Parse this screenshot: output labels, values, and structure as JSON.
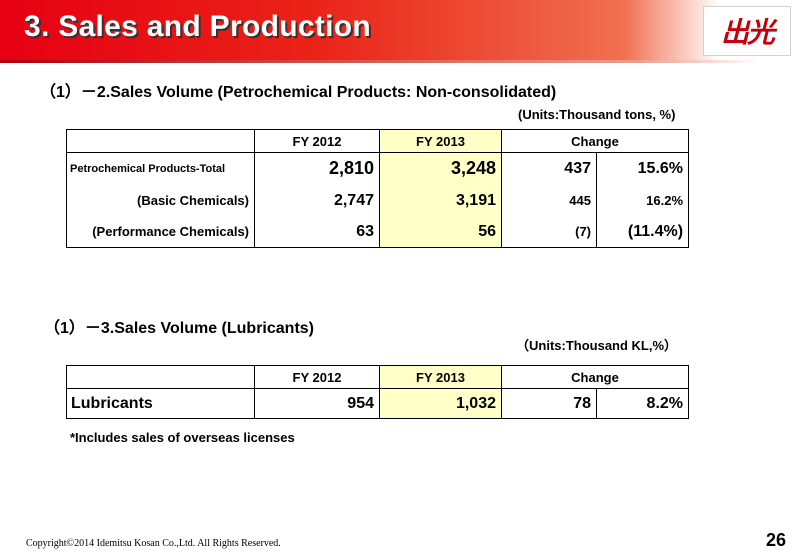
{
  "header": {
    "title": "3. Sales and Production",
    "logo_text": "出光"
  },
  "petrochem": {
    "title": "（1）－2.Sales Volume (Petrochemical  Products: Non-consolidated)",
    "units": "(Units:Thousand tons, %)",
    "columns": {
      "fy2012": "FY 2012",
      "fy2013": "FY 2013",
      "change": "Change"
    },
    "rows": [
      {
        "label": "Petrochemical Products-Total",
        "fy2012": "2,810",
        "fy2013": "3,248",
        "change": "437",
        "change_pct": "15.6%"
      },
      {
        "label": "(Basic Chemicals)",
        "fy2012": "2,747",
        "fy2013": "3,191",
        "change": "445",
        "change_pct": "16.2%"
      },
      {
        "label": "(Performance Chemicals)",
        "fy2012": "63",
        "fy2013": "56",
        "change": "(7)",
        "change_pct": "(11.4%)"
      }
    ]
  },
  "lubricants": {
    "title": "（1）－3.Sales Volume (Lubricants)",
    "units": "（Units:Thousand KL,%）",
    "columns": {
      "fy2012": "FY 2012",
      "fy2013": "FY 2013",
      "change": "Change"
    },
    "rows": [
      {
        "label": "Lubricants",
        "fy2012": "954",
        "fy2013": "1,032",
        "change": "78",
        "change_pct": "8.2%"
      }
    ]
  },
  "footnote": "*Includes sales of overseas licenses",
  "footer": {
    "copyright": "Copyright©2014 Idemitsu Kosan Co.,Ltd. All Rights Reserved.",
    "page_number": "26"
  },
  "colors": {
    "header_red": "#e60012",
    "highlight_yellow": "#ffffc8"
  }
}
